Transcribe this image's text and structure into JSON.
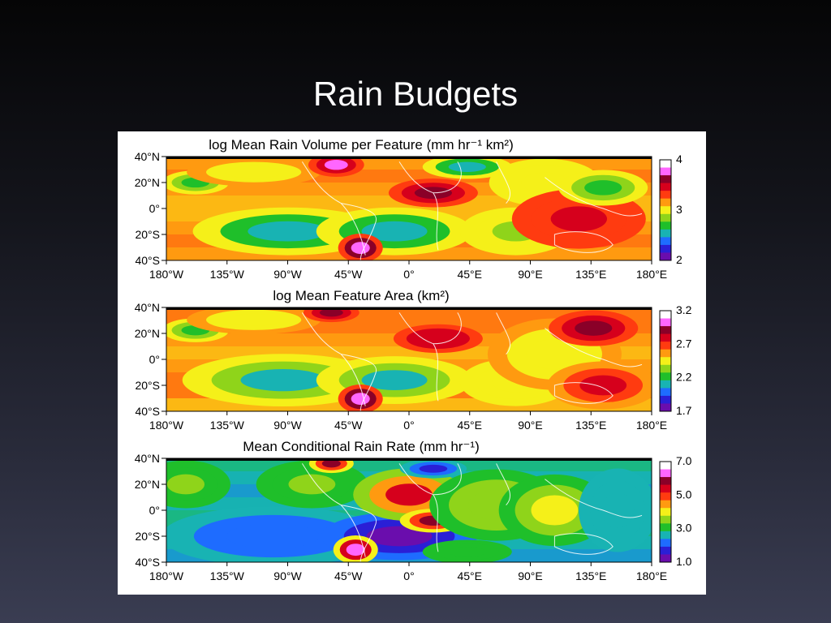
{
  "slide": {
    "title": "Rain Budgets"
  },
  "chart_data": [
    {
      "type": "heatmap",
      "title": "log Mean Rain Volume per Feature (mm hr⁻¹ km²)",
      "x_ticks": [
        "180°W",
        "135°W",
        "90°W",
        "45°W",
        "0°",
        "45°E",
        "90°E",
        "135°E",
        "180°E"
      ],
      "y_ticks": [
        "40°N",
        "20°N",
        "0°",
        "20°S",
        "40°S"
      ],
      "xlim": [
        -180,
        180
      ],
      "ylim": [
        -40,
        40
      ],
      "colorbar": {
        "labels": [
          "4",
          "3",
          "2"
        ],
        "range": [
          2,
          4
        ]
      },
      "colormap": "rainbow",
      "grid": false
    },
    {
      "type": "heatmap",
      "title": "log Mean Feature Area (km²)",
      "x_ticks": [
        "180°W",
        "135°W",
        "90°W",
        "45°W",
        "0°",
        "45°E",
        "90°E",
        "135°E",
        "180°E"
      ],
      "y_ticks": [
        "40°N",
        "20°N",
        "0°",
        "20°S",
        "40°S"
      ],
      "xlim": [
        -180,
        180
      ],
      "ylim": [
        -40,
        40
      ],
      "colorbar": {
        "labels": [
          "3.2",
          "2.7",
          "2.2",
          "1.7"
        ],
        "range": [
          1.7,
          3.2
        ]
      },
      "colormap": "rainbow",
      "grid": false
    },
    {
      "type": "heatmap",
      "title": "Mean Conditional Rain Rate (mm hr⁻¹)",
      "x_ticks": [
        "180°W",
        "135°W",
        "90°W",
        "45°W",
        "0°",
        "45°E",
        "90°E",
        "135°E",
        "180°E"
      ],
      "y_ticks": [
        "40°N",
        "20°N",
        "0°",
        "20°S",
        "40°S"
      ],
      "xlim": [
        -180,
        180
      ],
      "ylim": [
        -40,
        40
      ],
      "colorbar": {
        "labels": [
          "7.0",
          "5.0",
          "3.0",
          "1.0"
        ],
        "range": [
          1.0,
          7.0
        ]
      },
      "colormap": "rainbow",
      "grid": false
    }
  ],
  "colors": {
    "colormap_stops": [
      "#6a0dad",
      "#2a1fd6",
      "#1e6cff",
      "#18b3b3",
      "#1fbf2a",
      "#8fd41a",
      "#f5f019",
      "#ff9a10",
      "#ff3b10",
      "#d6001c",
      "#8a0028",
      "#ff66ff",
      "#ffffff"
    ],
    "slide_title": "#ffffff",
    "coastline": "#ffffff"
  }
}
